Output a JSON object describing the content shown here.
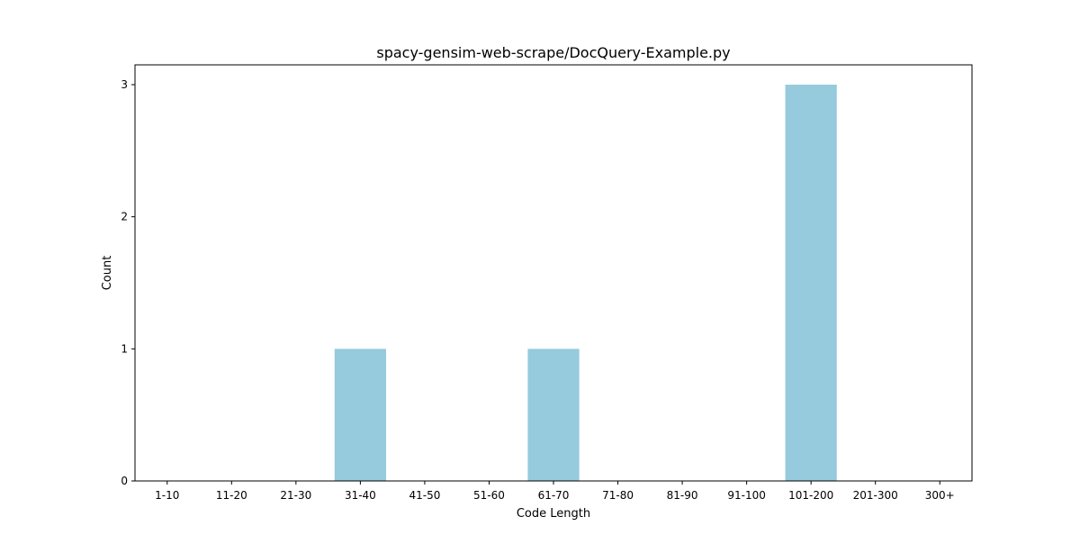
{
  "chart_data": {
    "type": "bar",
    "title": "spacy-gensim-web-scrape/DocQuery-Example.py",
    "xlabel": "Code Length",
    "ylabel": "Count",
    "categories": [
      "1-10",
      "11-20",
      "21-30",
      "31-40",
      "41-50",
      "51-60",
      "61-70",
      "71-80",
      "81-90",
      "91-100",
      "101-200",
      "201-300",
      "300+"
    ],
    "values": [
      0,
      0,
      0,
      1,
      0,
      0,
      1,
      0,
      0,
      0,
      3,
      0,
      0
    ],
    "ylim": [
      0,
      3.15
    ],
    "yticks": [
      0,
      1,
      2,
      3
    ],
    "grid": false,
    "bar_color": "#96cadd"
  }
}
